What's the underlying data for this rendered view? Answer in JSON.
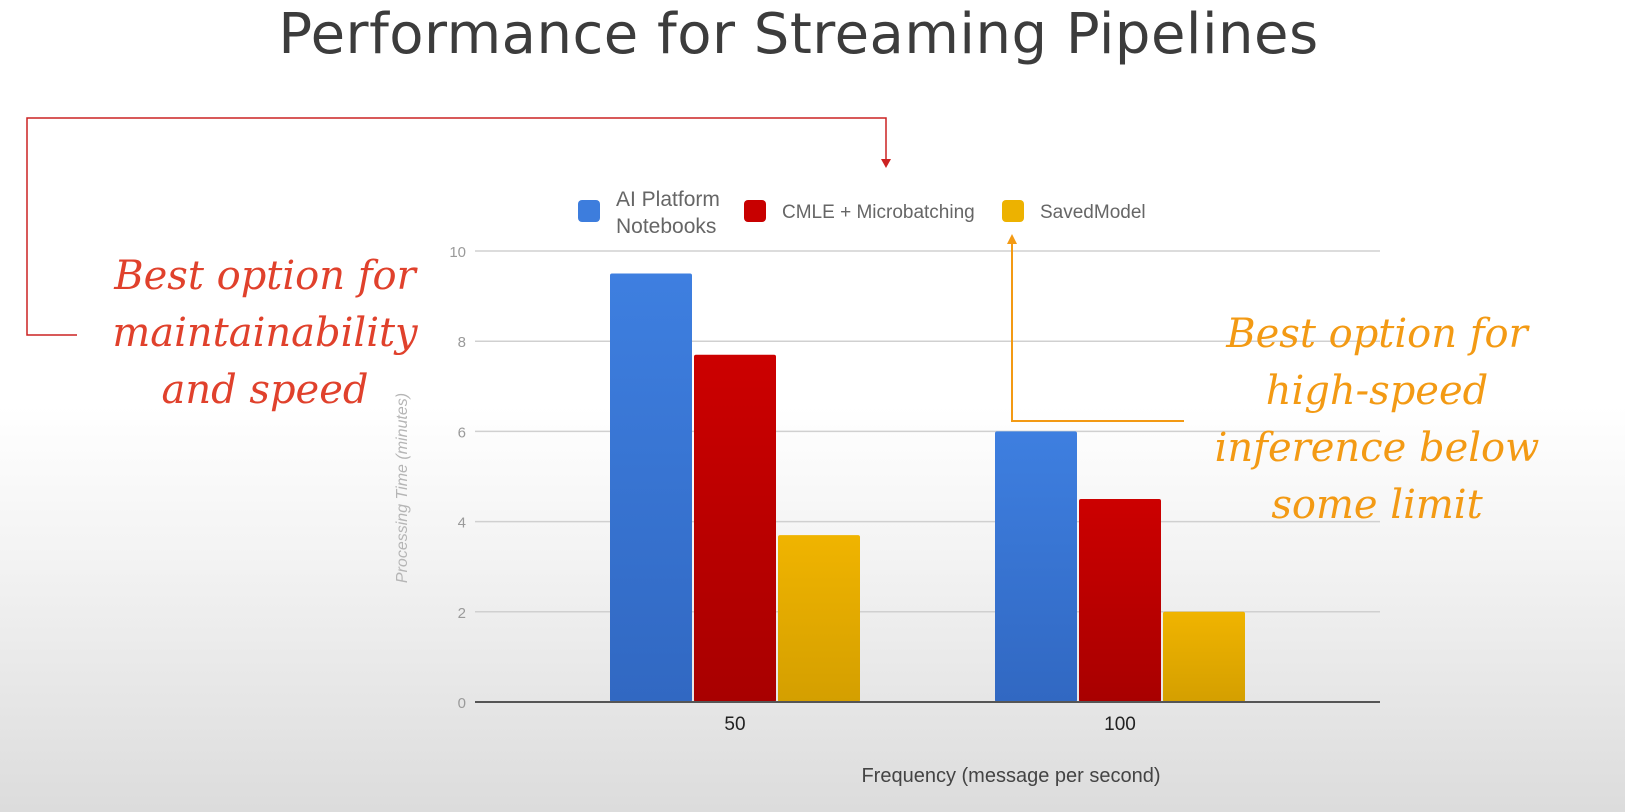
{
  "slide_title": "Performance for Streaming Pipelines",
  "chart_data": {
    "type": "bar",
    "title": "",
    "xlabel": "Frequency (message per second)",
    "ylabel": "Processing Time (minutes)",
    "categories": [
      "50",
      "100"
    ],
    "series": [
      {
        "name": "AI Platform Notebooks",
        "legend_lines": [
          "AI Platform",
          "Notebooks"
        ],
        "color": "#3d7ddd",
        "values": [
          9.5,
          6.0
        ]
      },
      {
        "name": "CMLE + Microbatching",
        "legend_lines": [
          "CMLE + Microbatching"
        ],
        "color": "#c80000",
        "values": [
          7.7,
          4.5
        ]
      },
      {
        "name": "SavedModel",
        "legend_lines": [
          "SavedModel"
        ],
        "color": "#edb200",
        "values": [
          3.7,
          2.0
        ]
      }
    ],
    "ylim": [
      0,
      10
    ],
    "yticks": [
      "0",
      "2",
      "4",
      "6",
      "8",
      "10"
    ],
    "grid": true,
    "legend_position": "top"
  },
  "annotations": {
    "left": {
      "lines": [
        "Best option for",
        "maintainability",
        "and speed"
      ],
      "color": "#e0412c"
    },
    "right": {
      "lines": [
        "Best option for",
        "high-speed",
        "inference below",
        "some limit"
      ],
      "color": "#f39a14"
    }
  }
}
